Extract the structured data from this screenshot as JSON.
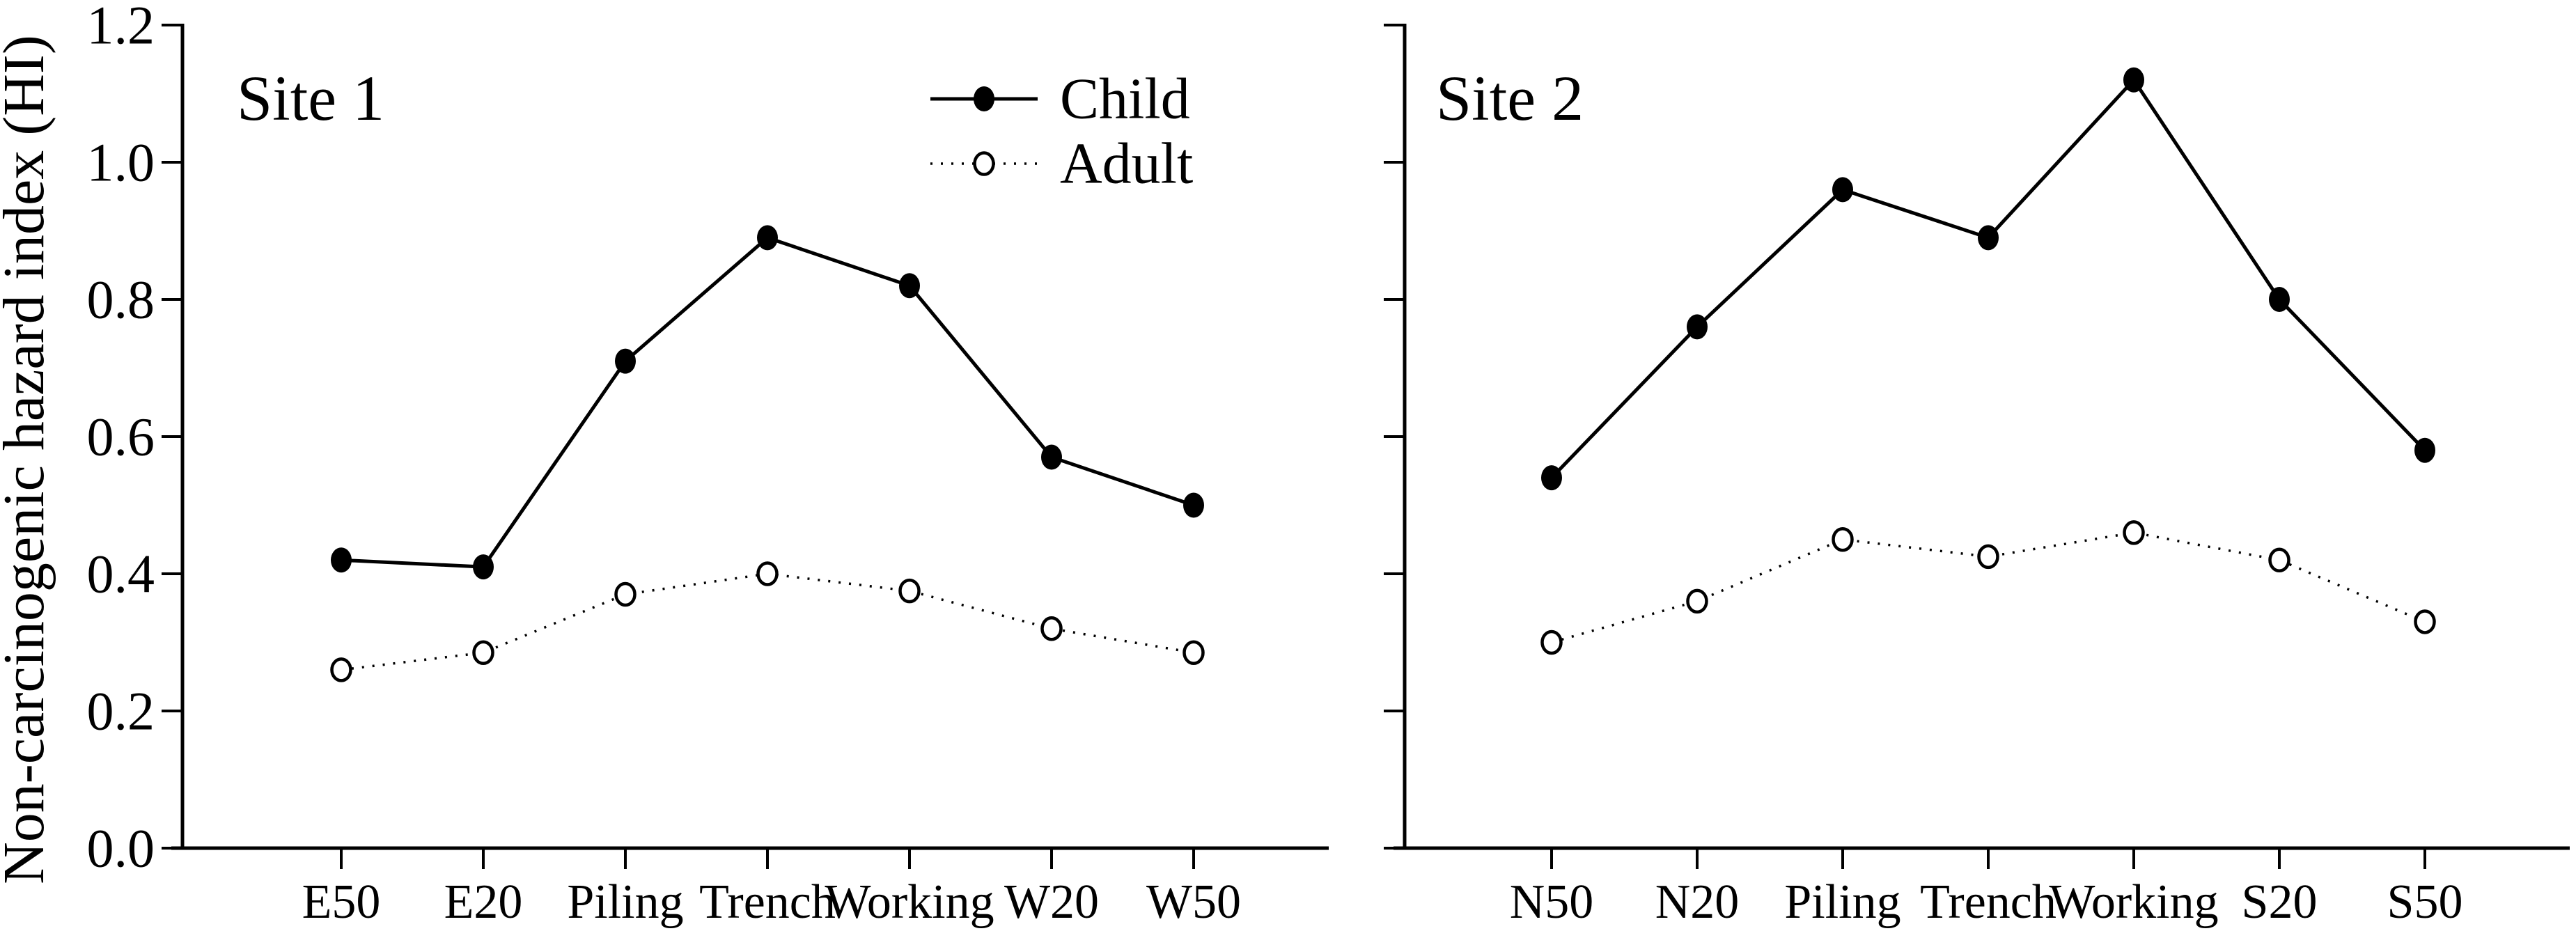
{
  "labels": {
    "y_axis_title": "Non-carcinogenic hazard index (HI)"
  },
  "colors": {
    "foreground": "#000000",
    "background": "#ffffff"
  },
  "chart_data": [
    {
      "type": "line",
      "panel": "Site 1",
      "categories": [
        "E50",
        "E20",
        "Piling",
        "Trench",
        "Working",
        "W20",
        "W50"
      ],
      "series": [
        {
          "name": "Child",
          "line": "solid",
          "marker": "filled-circle",
          "values": [
            0.42,
            0.41,
            0.71,
            0.89,
            0.82,
            0.57,
            0.5
          ]
        },
        {
          "name": "Adult",
          "line": "dotted",
          "marker": "open-circle",
          "values": [
            0.26,
            0.285,
            0.37,
            0.4,
            0.375,
            0.32,
            0.285
          ]
        }
      ],
      "ylabel": "Non-carcinogenic hazard index (HI)",
      "ylim": [
        0,
        1.2
      ],
      "yticks": [
        0.0,
        0.2,
        0.4,
        0.6,
        0.8,
        1.0,
        1.2
      ],
      "ytick_labels": [
        "0.0",
        "0.2",
        "0.4",
        "0.6",
        "0.8",
        "1.0",
        "1.2"
      ],
      "grid": false,
      "legend": {
        "position": "upper-right-of-panel",
        "entries": [
          "Child",
          "Adult"
        ]
      }
    },
    {
      "type": "line",
      "panel": "Site 2",
      "categories": [
        "N50",
        "N20",
        "Piling",
        "Trench",
        "Working",
        "S20",
        "S50"
      ],
      "series": [
        {
          "name": "Child",
          "line": "solid",
          "marker": "filled-circle",
          "values": [
            0.54,
            0.76,
            0.96,
            0.89,
            1.12,
            0.8,
            0.58
          ]
        },
        {
          "name": "Adult",
          "line": "dotted",
          "marker": "open-circle",
          "values": [
            0.3,
            0.36,
            0.45,
            0.425,
            0.46,
            0.42,
            0.33
          ]
        }
      ],
      "ylim": [
        0,
        1.2
      ],
      "yticks": [
        0.0,
        0.2,
        0.4,
        0.6,
        0.8,
        1.0,
        1.2
      ],
      "ytick_labels": [],
      "grid": false
    }
  ]
}
